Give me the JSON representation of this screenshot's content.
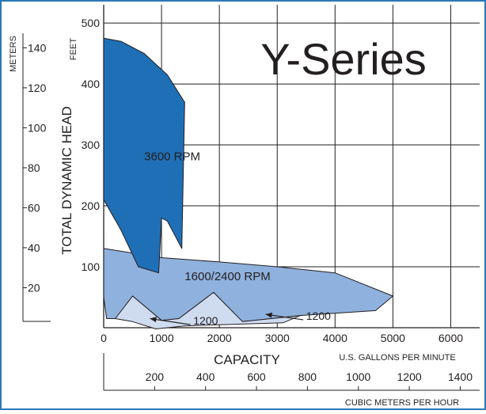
{
  "colors": {
    "border": "#2a78b8",
    "region_3600": "#1f6fb6",
    "region_1600_2400": "#8fb1dd",
    "region_1200": "#cfdcf0",
    "grid": "#231f20",
    "text": "#231f20"
  },
  "chart_data": {
    "type": "area",
    "title": "Y-Series",
    "xlabel": "CAPACITY",
    "xunit": "U.S. GALLONS PER MINUTE",
    "x2unit": "CUBIC METERS PER HOUR",
    "ylabel": "TOTAL DYNAMIC HEAD",
    "yunit": "FEET",
    "y2unit": "METERS",
    "xlim": [
      0,
      6500
    ],
    "ylim": [
      0,
      530
    ],
    "x_ticks": [
      0,
      1000,
      2000,
      3000,
      4000,
      5000,
      6000
    ],
    "x_tick_labels": [
      "0",
      "1000",
      "2000",
      "3000",
      "4000",
      "5000",
      "6000"
    ],
    "y_ticks": [
      100,
      200,
      300,
      400,
      500
    ],
    "y_tick_labels": [
      "100",
      "200",
      "300",
      "400",
      "500"
    ],
    "y2_ticks": [
      20,
      40,
      60,
      80,
      100,
      120,
      140
    ],
    "y2_tick_labels": [
      "20",
      "40",
      "60",
      "80",
      "100",
      "120",
      "140"
    ],
    "x2_ticks": [
      200,
      400,
      600,
      800,
      1000,
      1200,
      1400
    ],
    "x2_tick_labels": [
      "200",
      "400",
      "600",
      "800",
      "1000",
      "1200",
      "1400"
    ],
    "grid": true,
    "regions": [
      {
        "name": "1600/2400 RPM",
        "points": [
          [
            0,
            130
          ],
          [
            1000,
            115
          ],
          [
            2000,
            108
          ],
          [
            3000,
            100
          ],
          [
            4000,
            90
          ],
          [
            5000,
            52
          ],
          [
            4700,
            28
          ],
          [
            3400,
            20
          ],
          [
            2900,
            15
          ],
          [
            2400,
            10
          ],
          [
            1900,
            58
          ],
          [
            1300,
            15
          ],
          [
            1000,
            12
          ],
          [
            500,
            52
          ],
          [
            250,
            15
          ],
          [
            50,
            15
          ],
          [
            0,
            50
          ]
        ]
      },
      {
        "name": "1200",
        "points": [
          [
            200,
            15
          ],
          [
            500,
            52
          ],
          [
            1000,
            12
          ],
          [
            1300,
            15
          ],
          [
            1900,
            58
          ],
          [
            2400,
            10
          ],
          [
            2900,
            15
          ],
          [
            3400,
            20
          ],
          [
            3100,
            8
          ],
          [
            1400,
            3
          ],
          [
            900,
            -2
          ],
          [
            500,
            10
          ]
        ]
      },
      {
        "name": "3600 RPM",
        "points": [
          [
            0,
            475
          ],
          [
            300,
            470
          ],
          [
            700,
            450
          ],
          [
            1100,
            415
          ],
          [
            1400,
            370
          ],
          [
            1350,
            130
          ],
          [
            1100,
            175
          ],
          [
            1000,
            180
          ],
          [
            950,
            90
          ],
          [
            600,
            100
          ],
          [
            300,
            160
          ],
          [
            0,
            210
          ]
        ]
      }
    ],
    "labels": [
      {
        "text": "3600 RPM",
        "x": 700,
        "y": 275
      },
      {
        "text": "1600/2400 RPM",
        "x": 1400,
        "y": 78
      },
      {
        "text": "1200",
        "x": 1550,
        "y": 5
      },
      {
        "text": "1200",
        "x": 3500,
        "y": 13
      }
    ],
    "arrows": [
      {
        "from": [
          1500,
          5
        ],
        "to": [
          800,
          15
        ]
      },
      {
        "from": [
          3450,
          13
        ],
        "to": [
          2800,
          22
        ]
      }
    ]
  }
}
